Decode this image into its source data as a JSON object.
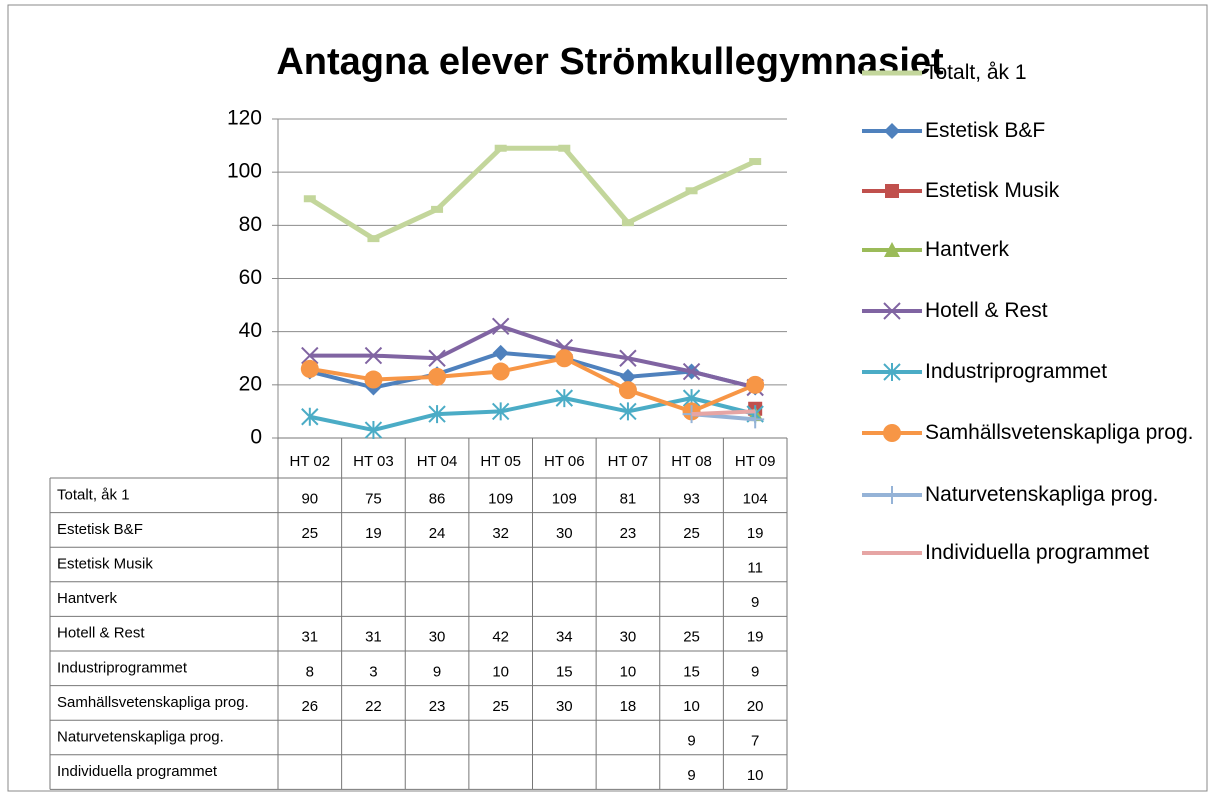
{
  "chart_data": {
    "type": "line",
    "title": "Antagna elever Strömkullegymnasiet",
    "categories": [
      "HT 02",
      "HT 03",
      "HT 04",
      "HT 05",
      "HT 06",
      "HT 07",
      "HT 08",
      "HT 09"
    ],
    "ylim": [
      0,
      120
    ],
    "yticks": [
      0,
      20,
      40,
      60,
      80,
      100,
      120
    ],
    "grid": true,
    "legend": "right",
    "data_table": true,
    "series": [
      {
        "name": "Totalt, åk 1",
        "color": "#c3d69b",
        "marker": "dash",
        "values": [
          90,
          75,
          86,
          109,
          109,
          81,
          93,
          104
        ]
      },
      {
        "name": "Estetisk B&F",
        "color": "#4f81bd",
        "marker": "diamond",
        "values": [
          25,
          19,
          24,
          32,
          30,
          23,
          25,
          19
        ]
      },
      {
        "name": "Estetisk Musik",
        "color": "#c0504d",
        "marker": "square",
        "values": [
          null,
          null,
          null,
          null,
          null,
          null,
          null,
          11
        ]
      },
      {
        "name": "Hantverk",
        "color": "#9bbb59",
        "marker": "triangle",
        "values": [
          null,
          null,
          null,
          null,
          null,
          null,
          null,
          9
        ]
      },
      {
        "name": "Hotell & Rest",
        "color": "#8064a2",
        "marker": "x",
        "values": [
          31,
          31,
          30,
          42,
          34,
          30,
          25,
          19
        ]
      },
      {
        "name": "Industriprogrammet",
        "color": "#4bacc6",
        "marker": "star",
        "values": [
          8,
          3,
          9,
          10,
          15,
          10,
          15,
          9
        ]
      },
      {
        "name": "Samhällsvetenskapliga prog.",
        "color": "#f79646",
        "marker": "circle",
        "values": [
          26,
          22,
          23,
          25,
          30,
          18,
          10,
          20
        ]
      },
      {
        "name": "Naturvetenskapliga prog.",
        "color": "#95b3d7",
        "marker": "plus",
        "values": [
          null,
          null,
          null,
          null,
          null,
          null,
          9,
          7
        ]
      },
      {
        "name": "Individuella programmet",
        "color": "#e6a5a4",
        "marker": "none",
        "values": [
          null,
          null,
          null,
          null,
          null,
          null,
          9,
          10
        ]
      }
    ]
  }
}
